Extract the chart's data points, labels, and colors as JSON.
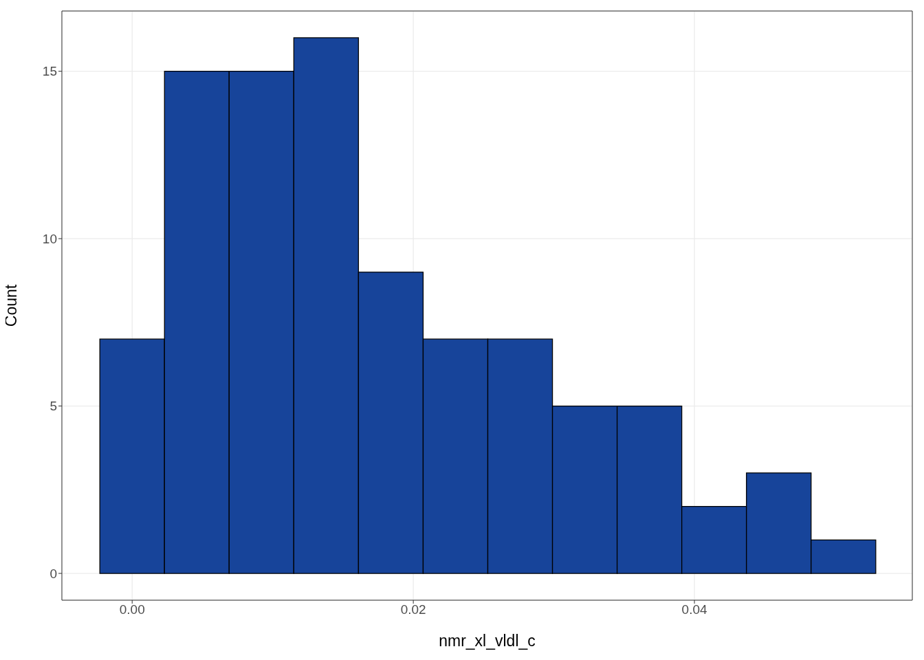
{
  "chart_data": {
    "type": "histogram",
    "xlabel": "nmr_xl_vldl_c",
    "ylabel": "Count",
    "bins": [
      -0.0023,
      0.0023,
      0.0069,
      0.0115,
      0.0161,
      0.0207,
      0.0253,
      0.0299,
      0.0345,
      0.0391,
      0.0437,
      0.0483,
      0.0529
    ],
    "values": [
      7,
      15,
      15,
      16,
      9,
      7,
      7,
      5,
      5,
      2,
      3,
      1
    ],
    "color": "#17449a",
    "xlim": [
      -0.005,
      0.0555
    ],
    "xticks": [
      {
        "value": 0,
        "label": "0.00"
      },
      {
        "value": 0.02,
        "label": "0.02"
      },
      {
        "value": 0.04,
        "label": "0.04"
      }
    ],
    "ylim": [
      -0.8,
      16.8
    ],
    "yticks": [
      0,
      5,
      10,
      15
    ],
    "grid": true
  }
}
